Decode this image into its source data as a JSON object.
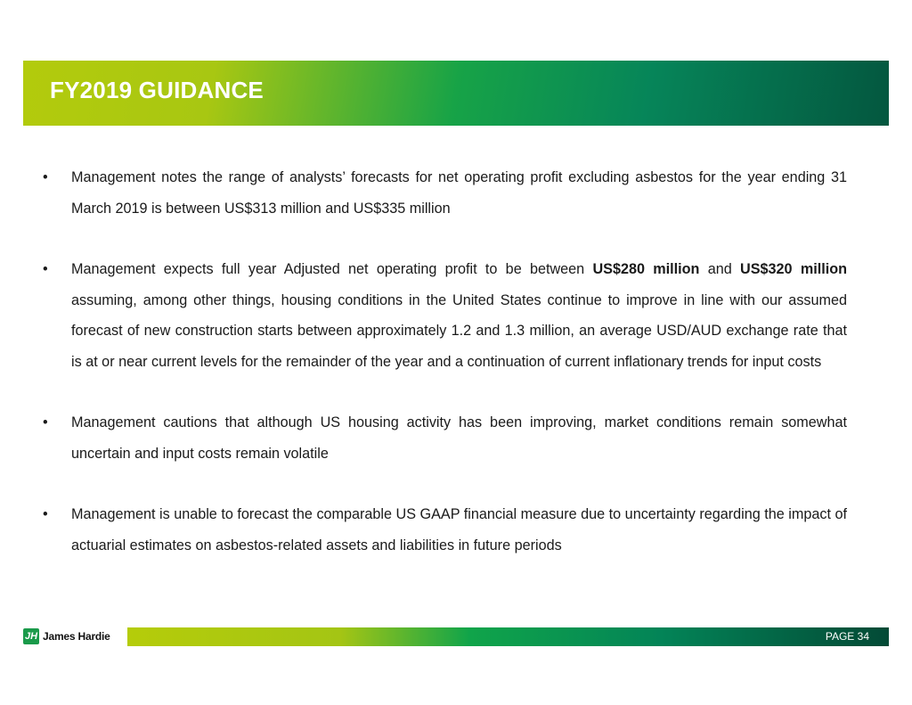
{
  "header": {
    "title": "FY2019 GUIDANCE"
  },
  "bullets": [
    {
      "segments": [
        {
          "text": "Management notes the range of analysts’ forecasts for net operating profit excluding asbestos for the year ending 31 March 2019 is between US$313 million and US$335 million",
          "bold": false
        }
      ]
    },
    {
      "segments": [
        {
          "text": "Management expects full year Adjusted net operating profit to be between ",
          "bold": false
        },
        {
          "text": "US$280 million",
          "bold": true
        },
        {
          "text": " and ",
          "bold": false
        },
        {
          "text": "US$320 million",
          "bold": true
        },
        {
          "text": " assuming, among other things, housing conditions in the United States continue to improve in line with our assumed forecast of new construction starts between approximately 1.2 and 1.3 million, an average USD/AUD exchange rate that is at or near current levels for the remainder of the year and a continuation of current inflationary trends for input costs",
          "bold": false
        }
      ]
    },
    {
      "segments": [
        {
          "text": "Management cautions that although US housing activity has been improving, market conditions remain somewhat uncertain and input costs remain volatile",
          "bold": false
        }
      ]
    },
    {
      "segments": [
        {
          "text": "Management is unable to forecast the comparable US GAAP financial measure due to uncertainty regarding the impact of actuarial estimates on asbestos-related assets and liabilities in future periods",
          "bold": false
        }
      ]
    }
  ],
  "bullet_glyph": "•",
  "footer": {
    "logo_text": "James Hardie",
    "logo_mark": "JH",
    "page_label": "PAGE  34"
  },
  "colors": {
    "green_light": "#b3cb0c",
    "green_mid": "#17a347",
    "green_dark": "#04573f"
  }
}
